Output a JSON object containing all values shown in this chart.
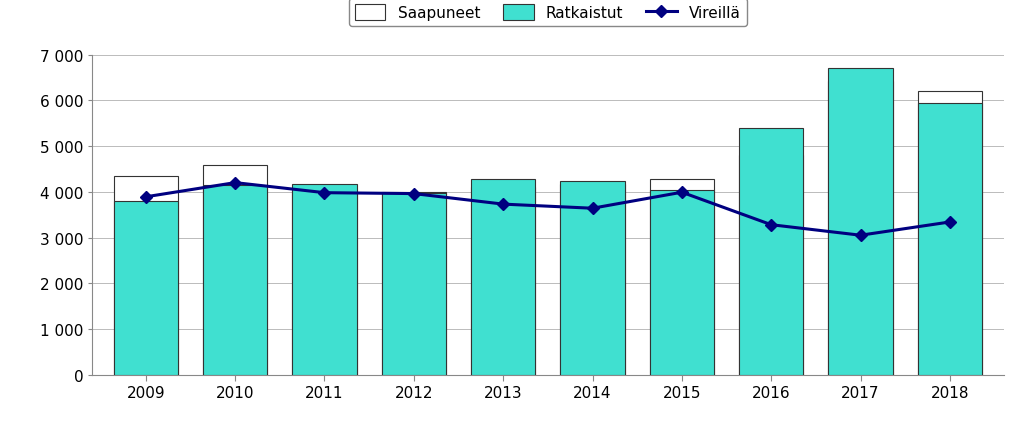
{
  "years": [
    2009,
    2010,
    2011,
    2012,
    2013,
    2014,
    2015,
    2016,
    2017,
    2018
  ],
  "saapuneet": [
    4350,
    4580,
    4020,
    4000,
    4100,
    4170,
    4280,
    4800,
    6430,
    6199
  ],
  "ratkaistut": [
    3800,
    4150,
    4170,
    3980,
    4280,
    4240,
    4040,
    5400,
    6700,
    5950
  ],
  "vireilla": [
    3890,
    4200,
    3980,
    3960,
    3730,
    3640,
    3990,
    3280,
    3050,
    3340
  ],
  "bar_width": 0.72,
  "saapuneet_color": "#ffffff",
  "saapuneet_edge": "#333333",
  "ratkaistut_color": "#40E0D0",
  "ratkaistut_edge": "#333333",
  "vireilla_color": "#000080",
  "vireilla_marker": "D",
  "ylim": [
    0,
    7000
  ],
  "yticks": [
    0,
    1000,
    2000,
    3000,
    4000,
    5000,
    6000,
    7000
  ],
  "legend_labels": [
    "Saapuneet",
    "Ratkaistut",
    "Vireillä"
  ],
  "background_color": "#ffffff",
  "grid_color": "#bbbbbb",
  "title": ""
}
